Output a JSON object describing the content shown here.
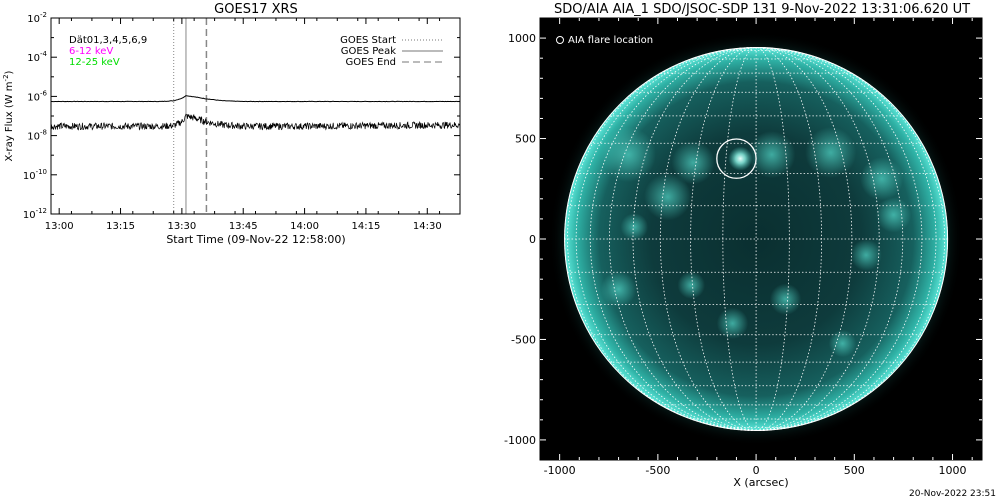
{
  "chart_data": [
    {
      "type": "line",
      "title": "GOES17 XRS",
      "xlabel": "Start Time (09-Nov-22 12:58:00)",
      "ylabel": "X-ray Flux (W m",
      "ylabel_sup": "-2",
      "ylabel_tail": ")",
      "xlim": [
        "12:58",
        "14:38"
      ],
      "ylim": [
        1e-12,
        0.01
      ],
      "yscale": "log",
      "x_ticks": [
        "13:00",
        "13:15",
        "13:30",
        "13:45",
        "14:00",
        "14:15",
        "14:30"
      ],
      "y_ticks": [
        {
          "base": "10",
          "exp": "-2",
          "value": 0.01
        },
        {
          "base": "10",
          "exp": "-4",
          "value": 0.0001
        },
        {
          "base": "10",
          "exp": "-6",
          "value": 1e-06
        },
        {
          "base": "10",
          "exp": "-8",
          "value": 1e-08
        },
        {
          "base": "10",
          "exp": "-10",
          "value": 1e-10
        },
        {
          "base": "10",
          "exp": "-12",
          "value": 1e-12
        }
      ],
      "detector_label": "Dät01,3,4,5,6,9",
      "series": [
        {
          "name": "6-12 keV",
          "color": "#ff00ff",
          "style": "solid",
          "points": [
            [
              "12:58",
              5.5e-07
            ],
            [
              "13:25",
              5.5e-07
            ],
            [
              "13:28",
              6e-07
            ],
            [
              "13:30",
              8e-07
            ],
            [
              "13:31",
              1.1e-06
            ],
            [
              "13:33",
              9.5e-07
            ],
            [
              "13:36",
              7.5e-07
            ],
            [
              "13:40",
              6e-07
            ],
            [
              "13:45",
              5.5e-07
            ],
            [
              "14:38",
              5.5e-07
            ]
          ]
        },
        {
          "name": "12-25 keV",
          "color": "#00dd00",
          "style": "noisy",
          "points": [
            [
              "12:58",
              3e-08
            ],
            [
              "13:25",
              3e-08
            ],
            [
              "13:28",
              3.2e-08
            ],
            [
              "13:30",
              5e-08
            ],
            [
              "13:31",
              1e-07
            ],
            [
              "13:33",
              8e-08
            ],
            [
              "13:36",
              5e-08
            ],
            [
              "13:40",
              3.5e-08
            ],
            [
              "13:45",
              3e-08
            ],
            [
              "14:00",
              3e-08
            ],
            [
              "14:38",
              3.5e-08
            ]
          ]
        }
      ],
      "event_lines": [
        {
          "name": "GOES Start",
          "time": "13:28",
          "style": "dotted"
        },
        {
          "name": "GOES Peak",
          "time": "13:31",
          "style": "solid"
        },
        {
          "name": "GOES End",
          "time": "13:36",
          "style": "dashed"
        }
      ]
    },
    {
      "type": "image",
      "title": "SDO/AIA AIA_1 SDO/JSOC-SDP 131  9-Nov-2022 13:31:06.620 UT",
      "xlabel": "X (arcsec)",
      "ylabel": "",
      "xlim": [
        -1100,
        1150
      ],
      "ylim": [
        -1100,
        1100
      ],
      "x_ticks": [
        "-1000",
        "-500",
        "0",
        "500",
        "1000"
      ],
      "y_ticks": [
        "1000",
        "500",
        "0",
        "-500",
        "-1000"
      ],
      "x_tick_values": [
        -1000,
        -500,
        0,
        500,
        1000
      ],
      "y_tick_values": [
        1000,
        500,
        0,
        -500,
        -1000
      ],
      "solar_radius_arcsec": 975,
      "grid_step_deg": 10,
      "legend": "AIA flare location",
      "flare_location": {
        "x": -100,
        "y": 400,
        "radius": 100
      },
      "colors": {
        "disk": "#0b3a3a",
        "limb": "#3fd3c3",
        "bright": "#7ff5e6",
        "background": "#000000"
      }
    }
  ],
  "footer": {
    "timestamp": "20-Nov-2022 23:51"
  }
}
